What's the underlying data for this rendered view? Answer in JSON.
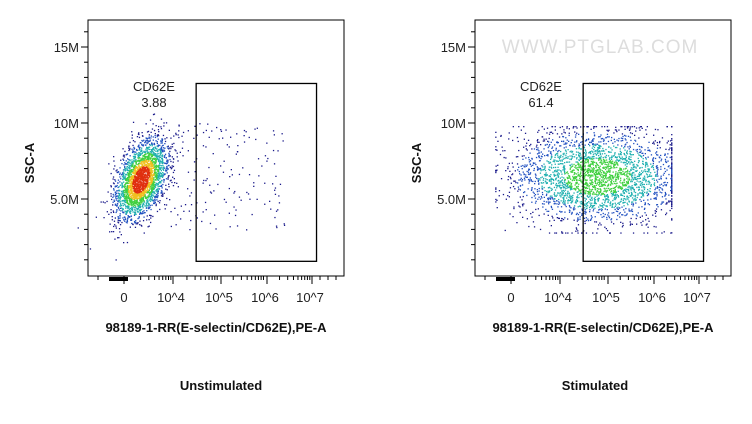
{
  "chart_data": [
    {
      "type": "scatter",
      "subtitle": "Unstimulated",
      "xlabel": "98189-1-RR(E-selectin/CD62E),PE-A",
      "ylabel": "SSC-A",
      "x_ticks": [
        "0",
        "10^4",
        "10^5",
        "10^6",
        "10^7"
      ],
      "y_ticks": [
        "5.0M",
        "10M",
        "15M"
      ],
      "gate": {
        "name": "CD62E",
        "value": "3.88",
        "x_range_log10": [
          4.5,
          7.1
        ],
        "y_range_M": [
          0.9,
          12.6
        ]
      },
      "populations": [
        {
          "pe_log10_center": 3.3,
          "pe_log10_sd": 0.25,
          "ssc_M_center": 6.3,
          "ssc_M_sd": 1.3,
          "events": 2600
        },
        {
          "pe_log10_range": [
            3.8,
            6.4
          ],
          "ssc_M_range": [
            3,
            10
          ],
          "events": 160
        }
      ]
    },
    {
      "type": "scatter",
      "subtitle": "Stimulated",
      "xlabel": "98189-1-RR(E-selectin/CD62E),PE-A",
      "ylabel": "SSC-A",
      "x_ticks": [
        "0",
        "10^4",
        "10^5",
        "10^6",
        "10^7"
      ],
      "y_ticks": [
        "5.0M",
        "10M",
        "15M"
      ],
      "gate": {
        "name": "CD62E",
        "value": "61.4",
        "x_range_log10": [
          4.5,
          7.1
        ],
        "y_range_M": [
          0.9,
          12.6
        ]
      },
      "populations": [
        {
          "pe_log10_center": 4.8,
          "pe_log10_sd": 0.9,
          "ssc_M_center": 6.5,
          "ssc_M_sd": 1.5,
          "events": 2800
        }
      ]
    }
  ],
  "watermark": "WWW.PTGLAB.COM"
}
